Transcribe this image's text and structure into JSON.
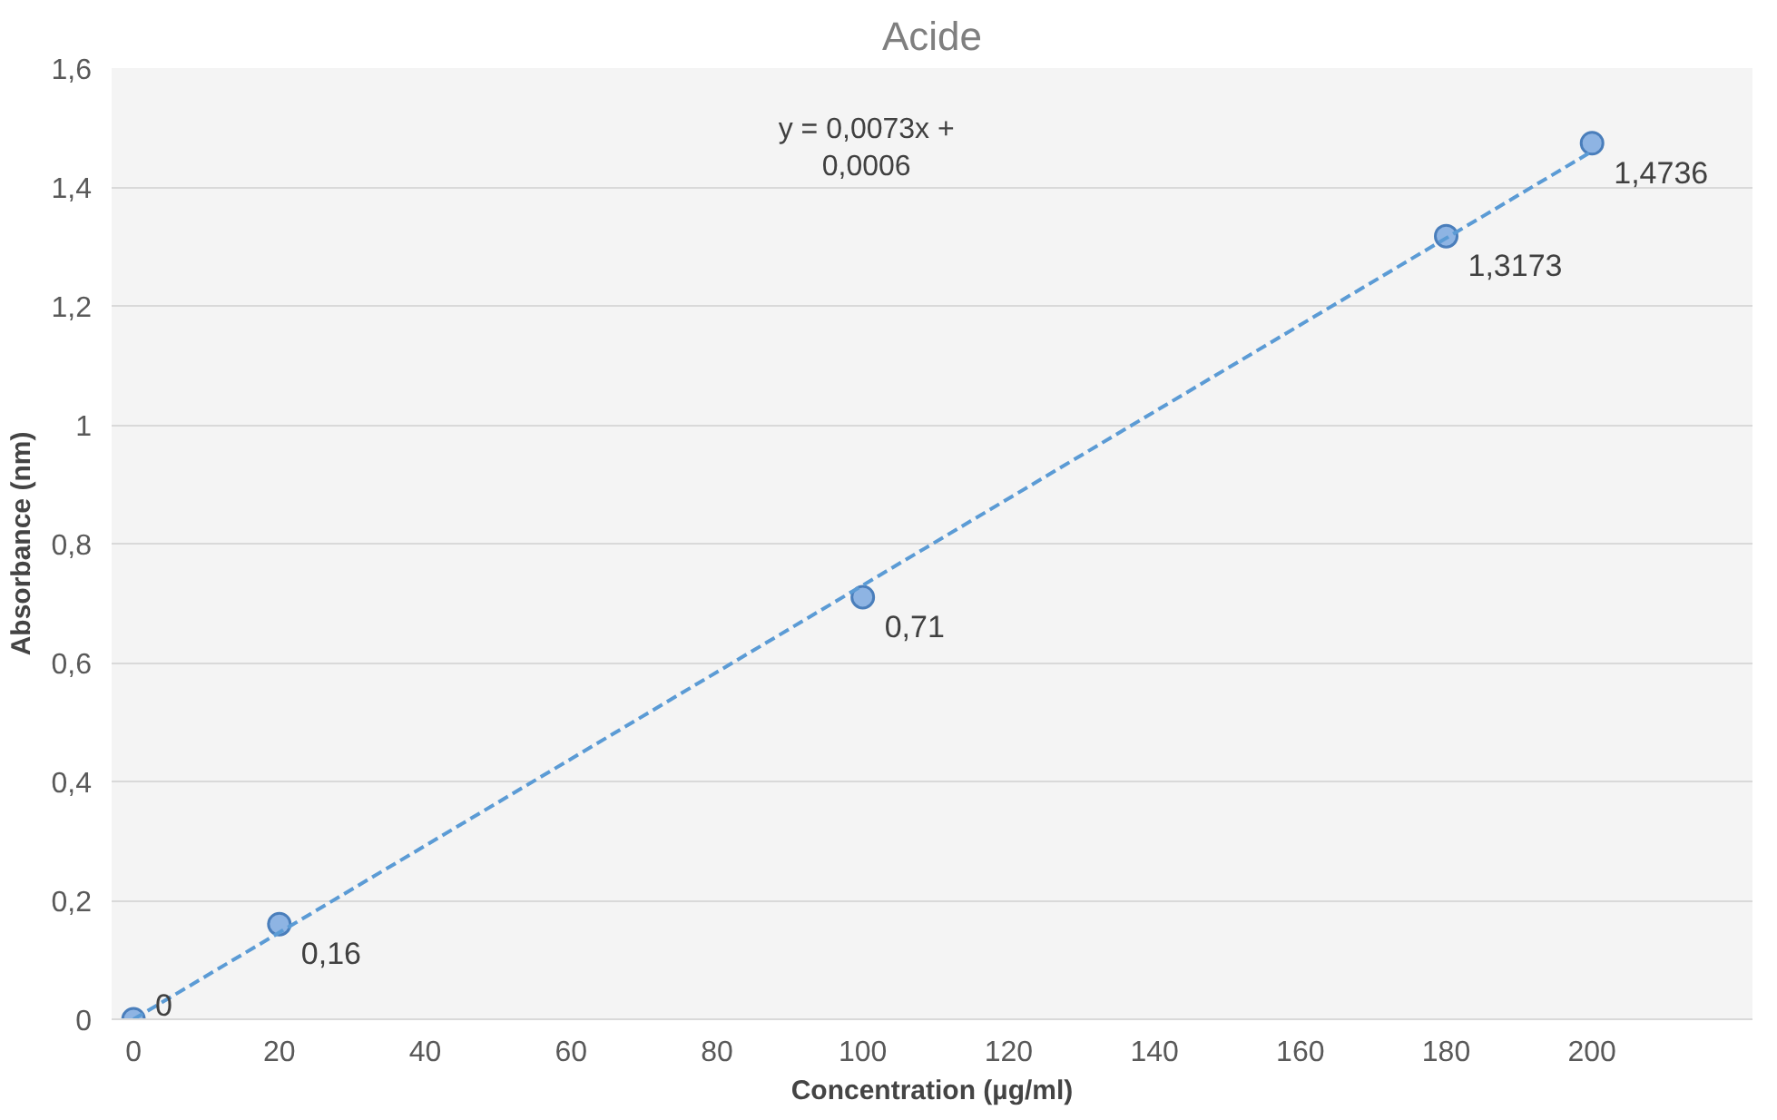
{
  "chart_data": {
    "type": "scatter",
    "title": "Acide",
    "xlabel": "Concentration (µg/ml)",
    "ylabel": "Absorbance (nm)",
    "x": [
      0,
      20,
      100,
      180,
      200
    ],
    "series": [
      {
        "color": "#4a7ebb",
        "values": [
          0,
          0.16,
          0.71,
          1.3173,
          1.4736
        ],
        "value_labels": [
          "0",
          "0,16",
          "0,71",
          "1,3173",
          "1,4736"
        ]
      },
      {
        "type": "line",
        "color": "#5b9bd5",
        "x": [
          0,
          200
        ],
        "values": [
          0,
          1.46
        ],
        "line_style": "dashed",
        "marker": "none"
      }
    ],
    "annotations": [
      "y = 0,0073x +\n0,0006"
    ],
    "xlim": [
      -3,
      222
    ],
    "ylim": [
      0,
      1.6
    ],
    "xticks": [
      0,
      20,
      40,
      60,
      80,
      100,
      120,
      140,
      160,
      180,
      200
    ],
    "yticks": [
      0,
      {
        "value": 0.2,
        "label": "0,2"
      },
      {
        "value": 0.4,
        "label": "0,4"
      },
      {
        "value": 0.6,
        "label": "0,6"
      },
      {
        "value": 0.8,
        "label": "0,8"
      },
      1,
      {
        "value": 1.2,
        "label": "1,2"
      },
      {
        "value": 1.4,
        "label": "1,4"
      },
      {
        "value": 1.6,
        "label": "1,6"
      }
    ],
    "grid": "y",
    "marker": "circle"
  }
}
